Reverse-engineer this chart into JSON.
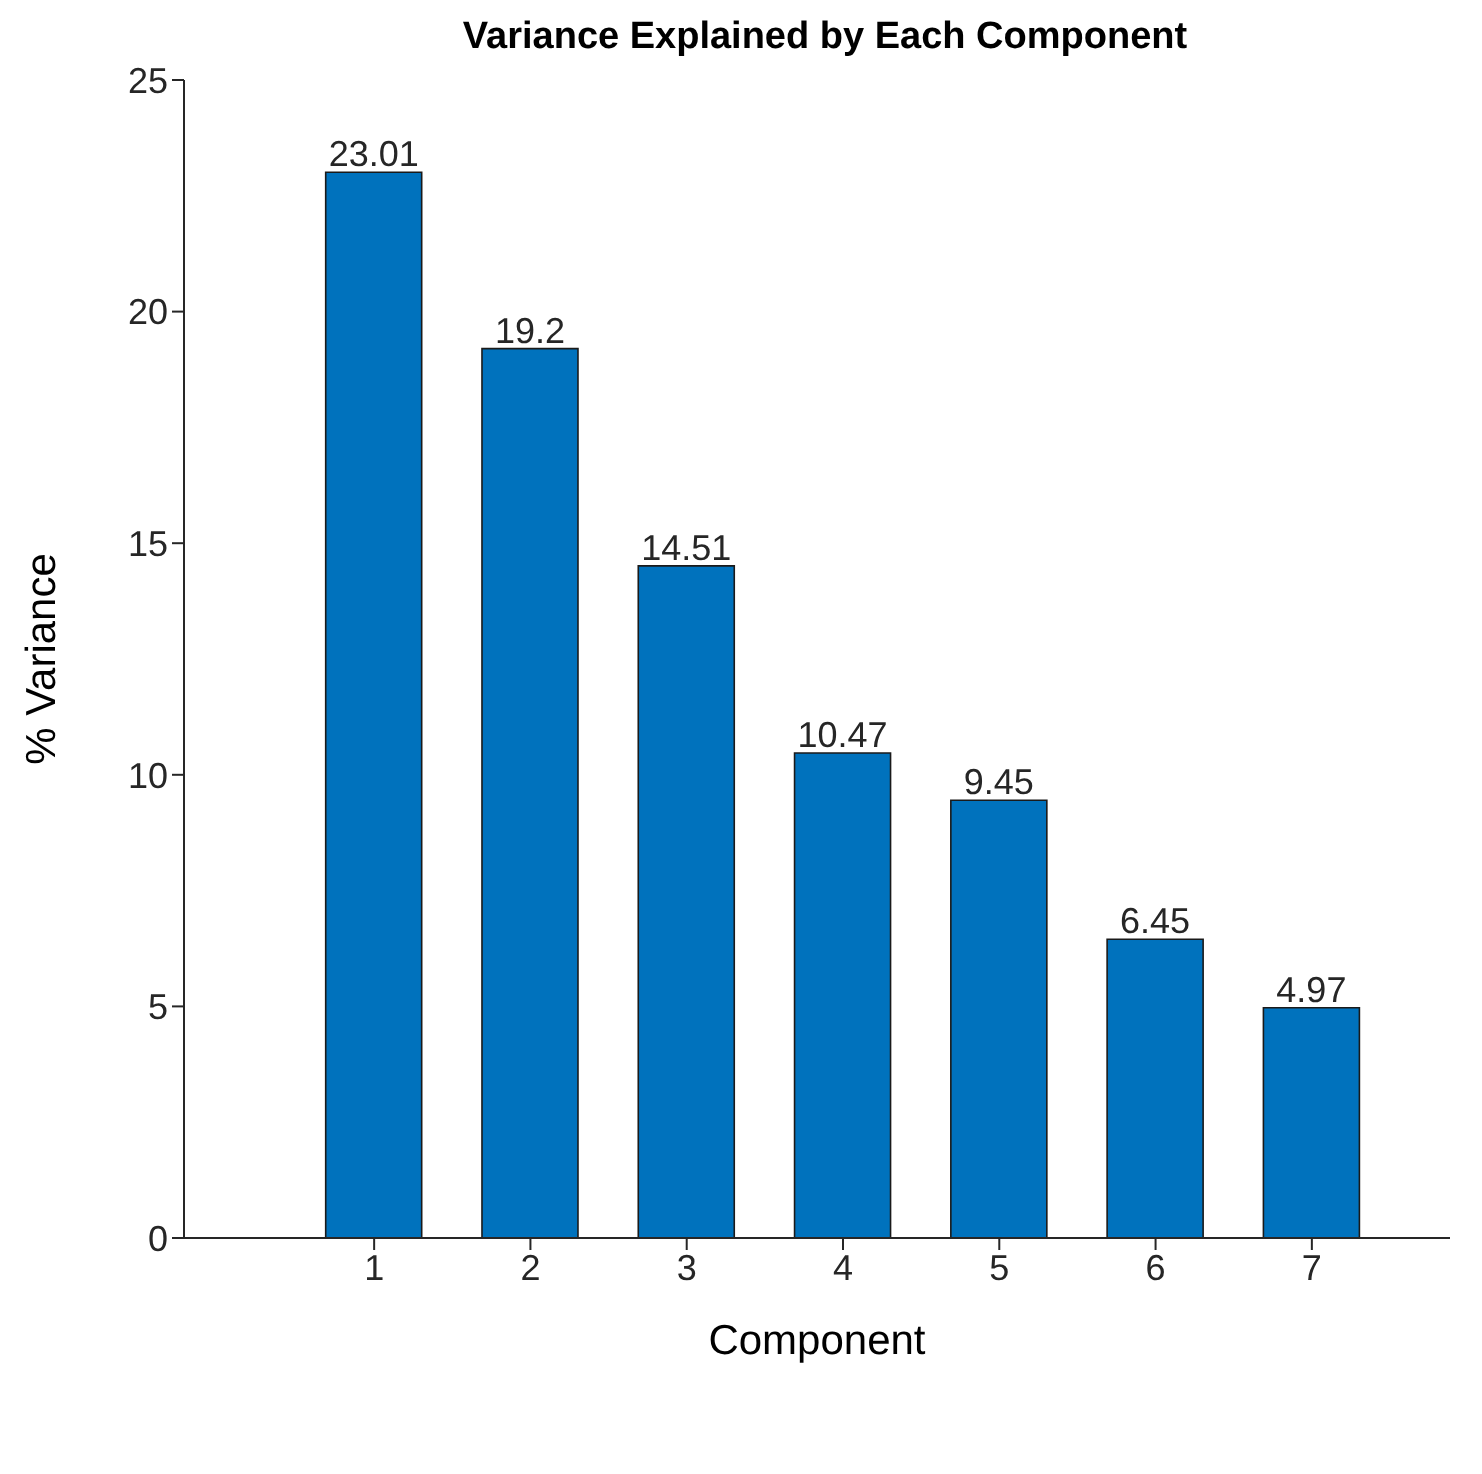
{
  "chart_data": {
    "type": "bar",
    "title": "Variance Explained by Each Component",
    "xlabel": "Component",
    "ylabel": "% Variance",
    "categories": [
      "1",
      "2",
      "3",
      "4",
      "5",
      "6",
      "7"
    ],
    "values": [
      23.01,
      19.2,
      14.51,
      10.47,
      9.45,
      6.45,
      4.97
    ],
    "color": "#0072bd",
    "ylim": [
      0,
      25
    ],
    "yticks": [
      0,
      5,
      10,
      15,
      20,
      25
    ],
    "data_labels": true,
    "grid": false,
    "legend": false
  }
}
